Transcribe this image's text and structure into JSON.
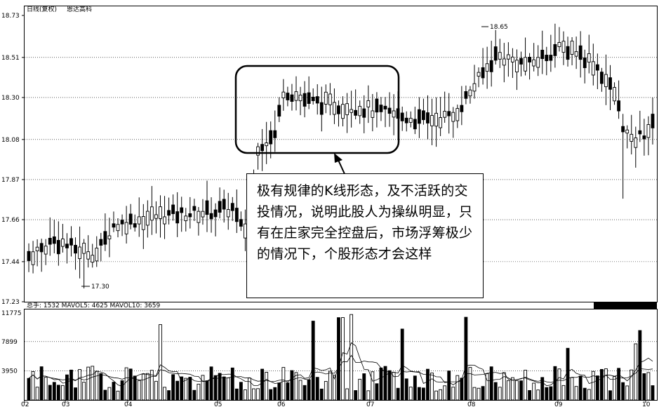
{
  "header": {
    "title": "日线(复权)",
    "stock": "恩达高科"
  },
  "price_axis": [
    "18.73",
    "18.51",
    "18.30",
    "18.08",
    "17.87",
    "17.66",
    "17.44",
    "17.23"
  ],
  "volume_header": "总手: 1532  MAVOL5: 4625  MAVOL10: 3659",
  "volume_axis": [
    "11775",
    "7899",
    "3950"
  ],
  "month_labels": [
    "02",
    "03",
    "04",
    "05",
    "06",
    "07",
    "08",
    "09",
    "10"
  ],
  "annotations": {
    "high": "18.65",
    "low": "17.30"
  },
  "note_text": "极有规律的K线形态，及不活跃的交投情况，说明此股人为操纵明显，只有在庄家完全控盘后，市场浮筹极少的情况下，个股形态才会这样",
  "chart_data": {
    "type": "candlestick",
    "title": "日线(复权) 恩达高科",
    "y_ticks": [
      18.73,
      18.51,
      18.3,
      18.08,
      17.87,
      17.66,
      17.44,
      17.23
    ],
    "ylim": [
      17.23,
      18.73
    ],
    "x_ticks": [
      "02",
      "03",
      "04",
      "05",
      "06",
      "07",
      "08",
      "09",
      "10"
    ],
    "high_label": 18.65,
    "low_label": 17.3,
    "volume": {
      "ylim": [
        0,
        11775
      ],
      "y_ticks": [
        11775,
        7899,
        3950
      ],
      "last": 1532,
      "mavol5": 4625,
      "mavol10": 3659
    },
    "colors": {
      "up": "#ffffff",
      "down": "#000000"
    }
  }
}
